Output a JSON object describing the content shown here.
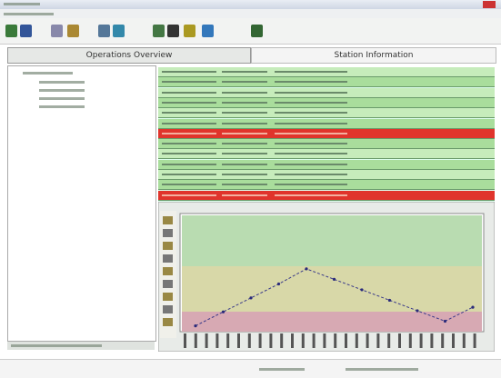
{
  "tabs": {
    "left": "Operations Overview",
    "right": "Station Information"
  },
  "trend": {
    "values": [
      5,
      17,
      29,
      41,
      54,
      45,
      36,
      27,
      18,
      9,
      21
    ],
    "ylim": [
      0,
      100
    ]
  }
}
